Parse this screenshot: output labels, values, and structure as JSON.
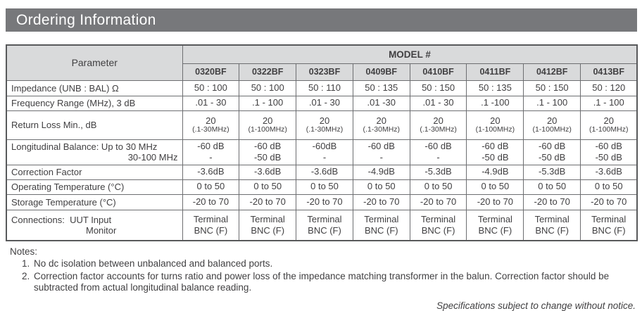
{
  "title_bar": {
    "label": "Ordering Information"
  },
  "table": {
    "parameter_header": "Parameter",
    "model_group_header": "MODEL #",
    "models": [
      "0320BF",
      "0322BF",
      "0323BF",
      "0409BF",
      "0410BF",
      "0411BF",
      "0412BF",
      "0413BF"
    ],
    "rows": [
      {
        "param_lines": [
          "Impedance (UNB : BAL) Ω"
        ],
        "cells": [
          [
            "50 : 100"
          ],
          [
            "50 : 100"
          ],
          [
            "50 : 110"
          ],
          [
            "50 : 135"
          ],
          [
            "50 : 150"
          ],
          [
            "50 : 135"
          ],
          [
            "50 : 150"
          ],
          [
            "50 : 120"
          ]
        ]
      },
      {
        "param_lines": [
          "Frequency Range (MHz), 3 dB"
        ],
        "cells": [
          [
            ".01 - 30"
          ],
          [
            ".1 - 100"
          ],
          [
            ".01 - 30"
          ],
          [
            ".01 -30"
          ],
          [
            ".01 - 30"
          ],
          [
            ".1 -100"
          ],
          [
            ".1 - 100"
          ],
          [
            ".1 - 100"
          ]
        ]
      },
      {
        "param_lines": [
          "Return Loss Min., dB"
        ],
        "sub_second_line": true,
        "cells": [
          [
            "20",
            "(.1-30MHz)"
          ],
          [
            "20",
            "(1-100MHz)"
          ],
          [
            "20",
            "(.1-30MHz)"
          ],
          [
            "20",
            "(.1-30MHz)"
          ],
          [
            "20",
            "(.1-30MHz)"
          ],
          [
            "20",
            "(1-100MHz)"
          ],
          [
            "20",
            "(1-100MHz)"
          ],
          [
            "20",
            "(1-100MHz)"
          ]
        ]
      },
      {
        "param_lines": [
          "Longitudinal Balance: Up to 30 MHz",
          "30-100 MHz"
        ],
        "cells": [
          [
            "-60 dB",
            "-"
          ],
          [
            "-60 dB",
            "-50 dB"
          ],
          [
            "-60dB",
            "-"
          ],
          [
            "-60 dB",
            "-"
          ],
          [
            "-60 dB",
            "-"
          ],
          [
            "-60 dB",
            "-50 dB"
          ],
          [
            "-60 dB",
            "-50 dB"
          ],
          [
            "-60 dB",
            "-50 dB"
          ]
        ]
      },
      {
        "param_lines": [
          "Correction Factor"
        ],
        "cells": [
          [
            "-3.6dB"
          ],
          [
            "-3.6dB"
          ],
          [
            "-3.6dB"
          ],
          [
            "-4.9dB"
          ],
          [
            "-5.3dB"
          ],
          [
            "-4.9dB"
          ],
          [
            "-5.3dB"
          ],
          [
            "-3.6dB"
          ]
        ]
      },
      {
        "param_lines": [
          "Operating Temperature (°C)"
        ],
        "cells": [
          [
            "0 to 50"
          ],
          [
            "0 to 50"
          ],
          [
            "0 to 50"
          ],
          [
            "0 to 50"
          ],
          [
            "0 to 50"
          ],
          [
            "0 to 50"
          ],
          [
            "0 to 50"
          ],
          [
            "0 to 50"
          ]
        ]
      },
      {
        "param_lines": [
          "Storage Temperature (°C)"
        ],
        "cells": [
          [
            "-20 to 70"
          ],
          [
            "-20 to 70"
          ],
          [
            "-20 to 70"
          ],
          [
            "-20 to 70"
          ],
          [
            "-20 to 70"
          ],
          [
            "-20 to 70"
          ],
          [
            "-20 to 70"
          ],
          [
            "-20 to 70"
          ]
        ]
      },
      {
        "param_lines": [
          "Connections:  UUT Input",
          "Monitor"
        ],
        "cells": [
          [
            "Terminal",
            "BNC (F)"
          ],
          [
            "Terminal",
            "BNC (F)"
          ],
          [
            "Terminal",
            "BNC (F)"
          ],
          [
            "Terminal",
            "BNC (F)"
          ],
          [
            "Terminal",
            "BNC (F)"
          ],
          [
            "Terminal",
            "BNC (F)"
          ],
          [
            "Terminal",
            "BNC (F)"
          ],
          [
            "Terminal",
            "BNC (F)"
          ]
        ]
      }
    ]
  },
  "notes": {
    "heading": "Notes:",
    "items": [
      "No dc isolation between unbalanced and balanced ports.",
      "Correction factor accounts for turns ratio and power loss of the impedance matching transformer in the balun. Correction factor should be subtracted from actual longitudinal balance reading."
    ]
  },
  "footer": {
    "disclaimer": "Specifications subject to change without notice."
  },
  "colors": {
    "title_bar_bg": "#77787b",
    "header_cell_bg": "#d9dadb",
    "text": "#414042",
    "border": "#6d6e71"
  }
}
